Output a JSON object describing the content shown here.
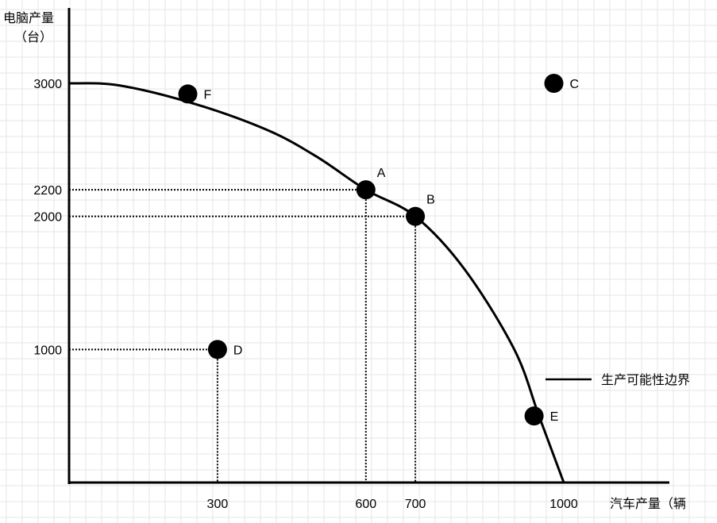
{
  "chart_data": {
    "type": "scatter",
    "ylabel_line1": "电脑产量",
    "ylabel_line2": "（台）",
    "xlabel": "汽车产量（辆",
    "x_ticks": [
      300,
      600,
      700,
      1000
    ],
    "y_ticks": [
      1000,
      2000,
      2200,
      3000
    ],
    "curve_label": "生产可能性边界",
    "curve": [
      {
        "x": 0,
        "y": 3000
      },
      {
        "x": 100,
        "y": 2985
      },
      {
        "x": 250,
        "y": 2850
      },
      {
        "x": 400,
        "y": 2650
      },
      {
        "x": 500,
        "y": 2450
      },
      {
        "x": 600,
        "y": 2200
      },
      {
        "x": 700,
        "y": 2000
      },
      {
        "x": 800,
        "y": 1600
      },
      {
        "x": 900,
        "y": 1000
      },
      {
        "x": 950,
        "y": 500
      },
      {
        "x": 1000,
        "y": 0
      }
    ],
    "points": [
      {
        "label": "F",
        "x": 240,
        "y": 2920
      },
      {
        "label": "C",
        "x": 980,
        "y": 3000
      },
      {
        "label": "A",
        "x": 600,
        "y": 2200
      },
      {
        "label": "B",
        "x": 700,
        "y": 2000
      },
      {
        "label": "D",
        "x": 300,
        "y": 1000
      },
      {
        "label": "E",
        "x": 940,
        "y": 500
      }
    ],
    "guides": [
      {
        "x": 600,
        "y": 2200
      },
      {
        "x": 700,
        "y": 2000
      },
      {
        "x": 300,
        "y": 1000
      }
    ],
    "xlim": [
      0,
      1000
    ],
    "ylim": [
      0,
      3000
    ],
    "grid": true
  }
}
